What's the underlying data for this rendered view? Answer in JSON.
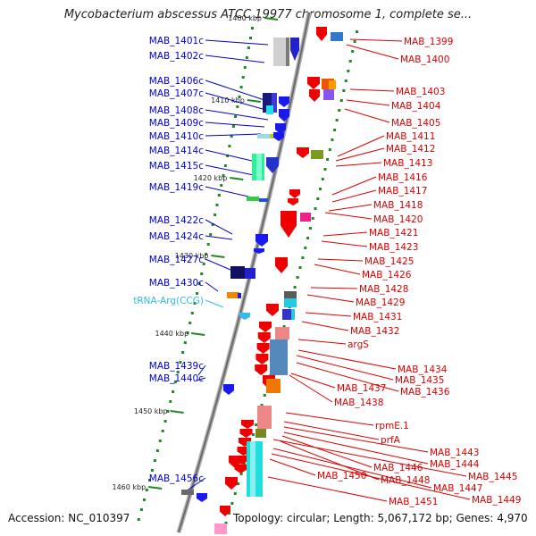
{
  "title": "Mycobacterium abscessus ATCC 19977 chromosome 1, complete se...",
  "accession": "Accession: NC_010397",
  "summary": "Topology: circular; Length: 5,067,172 bp; Genes: 4,970",
  "colors": {
    "forward_label": "#0000cc",
    "reverse_label": "#dd0000",
    "trna_label": "#33bbdd",
    "backbone": "#888888",
    "tick": "#228822"
  },
  "scale_ticks": [
    "1400 kbp",
    "1410 kbp",
    "1420 kbp",
    "1430 kbp",
    "1440 kbp",
    "1450 kbp",
    "1460 kbp"
  ],
  "left_genes": [
    {
      "name": "MAB_1401c",
      "kind": "cds"
    },
    {
      "name": "MAB_1402c",
      "kind": "cds"
    },
    {
      "name": "MAB_1406c",
      "kind": "cds"
    },
    {
      "name": "MAB_1407c",
      "kind": "cds"
    },
    {
      "name": "MAB_1408c",
      "kind": "cds"
    },
    {
      "name": "MAB_1409c",
      "kind": "cds"
    },
    {
      "name": "MAB_1410c",
      "kind": "cds"
    },
    {
      "name": "MAB_1414c",
      "kind": "cds"
    },
    {
      "name": "MAB_1415c",
      "kind": "cds"
    },
    {
      "name": "MAB_1419c",
      "kind": "cds"
    },
    {
      "name": "MAB_1422c",
      "kind": "cds"
    },
    {
      "name": "MAB_1424c",
      "kind": "cds"
    },
    {
      "name": "MAB_1427c",
      "kind": "cds"
    },
    {
      "name": "MAB_1430c",
      "kind": "cds"
    },
    {
      "name": "tRNA-Arg(CCG)",
      "kind": "trna"
    },
    {
      "name": "MAB_1439c",
      "kind": "cds"
    },
    {
      "name": "MAB_1440c",
      "kind": "cds"
    },
    {
      "name": "MAB_1456c",
      "kind": "cds"
    }
  ],
  "right_genes": [
    "MAB_1399",
    "MAB_1400",
    "MAB_1403",
    "MAB_1404",
    "MAB_1405",
    "MAB_1411",
    "MAB_1412",
    "MAB_1413",
    "MAB_1416",
    "MAB_1417",
    "MAB_1418",
    "MAB_1420",
    "MAB_1421",
    "MAB_1423",
    "MAB_1425",
    "MAB_1426",
    "MAB_1428",
    "MAB_1429",
    "MAB_1431",
    "MAB_1432",
    "argS",
    "MAB_1434",
    "MAB_1435",
    "MAB_1436",
    "MAB_1437",
    "MAB_1438",
    "rpmE.1",
    "prfA",
    "MAB_1443",
    "MAB_1444",
    "MAB_1445",
    "MAB_1446",
    "MAB_1447",
    "MAB_1448",
    "MAB_1449",
    "MAB_1450",
    "MAB_1451"
  ]
}
